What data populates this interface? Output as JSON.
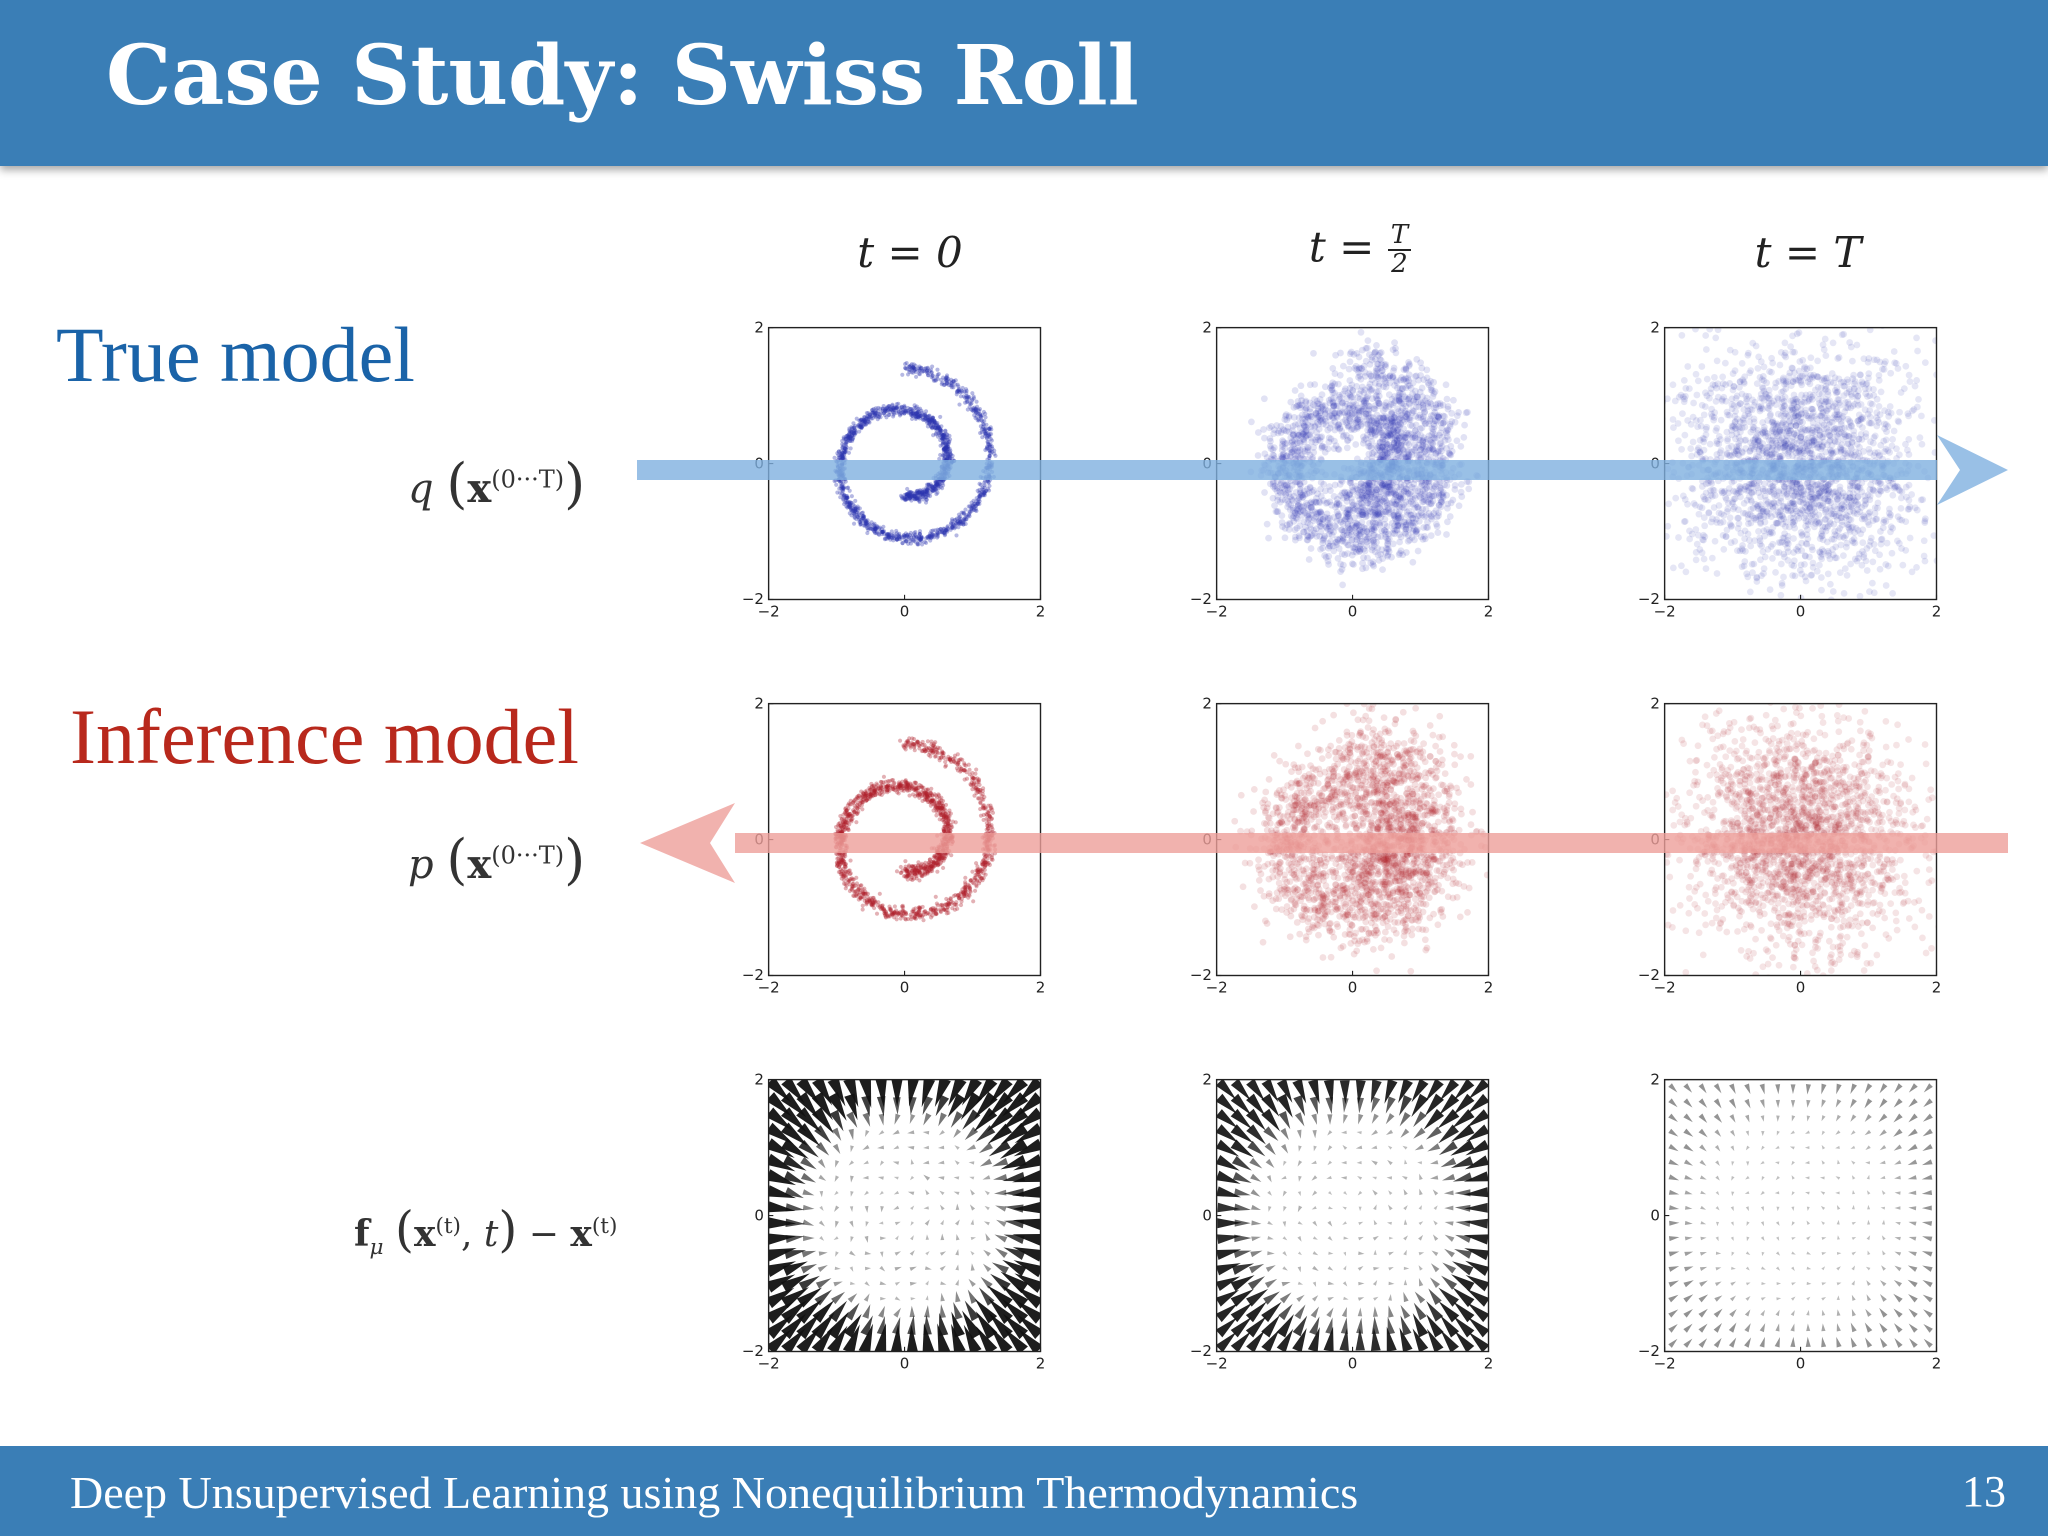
{
  "slide": {
    "title": "Case Study: Swiss Roll",
    "footer_text": "Deep Unsupervised Learning using Nonequilibrium Thermodynamics",
    "page_number": "13"
  },
  "labels": {
    "true_model": "True model",
    "inference_model": "Inference model"
  },
  "row_math": {
    "q": {
      "fn": "q",
      "var": "x",
      "sup": "(0···T)"
    },
    "p": {
      "fn": "p",
      "var": "x",
      "sup": "(0···T)"
    },
    "f": {
      "fn": "f",
      "sub": "μ",
      "var": "x",
      "sup": "(t)",
      "arg": "t",
      "minus": "−"
    }
  },
  "columns": {
    "t0": "t = 0",
    "thalf_lhs": "t =",
    "thalf_num": "T",
    "thalf_den": "2",
    "tT": "t = T"
  },
  "colors": {
    "header": "#3a7eb6",
    "true_model": "#1a63a8",
    "inference_model": "#b8281c",
    "forward_arrow": "#7fb0e0",
    "reverse_arrow": "#ee9f9a",
    "blue_points": "#2a35b0",
    "red_points": "#b0202a"
  },
  "chart_data": [
    {
      "type": "scatter",
      "row": "true",
      "column": "t = 0",
      "series": "swiss roll",
      "spread": 0.04,
      "xlim": [
        -2,
        2
      ],
      "ylim": [
        -2,
        2
      ],
      "xticks": [
        "−2",
        "0",
        "2"
      ],
      "yticks": [
        "−2",
        "0",
        "2"
      ]
    },
    {
      "type": "scatter",
      "row": "true",
      "column": "t = T/2",
      "series": "swiss roll",
      "spread": 0.22,
      "xlim": [
        -2,
        2
      ],
      "ylim": [
        -2,
        2
      ],
      "xticks": [
        "−2",
        "0",
        "2"
      ],
      "yticks": [
        "−2",
        "0",
        "2"
      ]
    },
    {
      "type": "scatter",
      "row": "true",
      "column": "t = T",
      "series": "gaussian",
      "spread": 1.0,
      "xlim": [
        -2,
        2
      ],
      "ylim": [
        -2,
        2
      ],
      "xticks": [
        "−2",
        "0",
        "2"
      ],
      "yticks": [
        "−2",
        "0",
        "2"
      ]
    },
    {
      "type": "scatter",
      "row": "inference",
      "column": "t = 0",
      "series": "swiss roll",
      "spread": 0.05,
      "xlim": [
        -2,
        2
      ],
      "ylim": [
        -2,
        2
      ],
      "xticks": [
        "−2",
        "0",
        "2"
      ],
      "yticks": [
        "−2",
        "0",
        "2"
      ]
    },
    {
      "type": "scatter",
      "row": "inference",
      "column": "t = T/2",
      "series": "swiss roll",
      "spread": 0.3,
      "xlim": [
        -2,
        2
      ],
      "ylim": [
        -2,
        2
      ],
      "xticks": [
        "−2",
        "0",
        "2"
      ],
      "yticks": [
        "−2",
        "0",
        "2"
      ]
    },
    {
      "type": "scatter",
      "row": "inference",
      "column": "t = T",
      "series": "gaussian",
      "spread": 1.0,
      "xlim": [
        -2,
        2
      ],
      "ylim": [
        -2,
        2
      ],
      "xticks": [
        "−2",
        "0",
        "2"
      ],
      "yticks": [
        "−2",
        "0",
        "2"
      ]
    },
    {
      "type": "quiver",
      "row": "drift",
      "column": "t = 0",
      "strength": 1.0,
      "xlim": [
        -2,
        2
      ],
      "ylim": [
        -2,
        2
      ],
      "xticks": [
        "−2",
        "0",
        "2"
      ],
      "yticks": [
        "−2",
        "0",
        "2"
      ]
    },
    {
      "type": "quiver",
      "row": "drift",
      "column": "t = T/2",
      "strength": 0.8,
      "xlim": [
        -2,
        2
      ],
      "ylim": [
        -2,
        2
      ],
      "xticks": [
        "−2",
        "0",
        "2"
      ],
      "yticks": [
        "−2",
        "0",
        "2"
      ]
    },
    {
      "type": "quiver",
      "row": "drift",
      "column": "t = T",
      "strength": 0.25,
      "xlim": [
        -2,
        2
      ],
      "ylim": [
        -2,
        2
      ],
      "xticks": [
        "−2",
        "0",
        "2"
      ],
      "yticks": [
        "−2",
        "0",
        "2"
      ]
    }
  ]
}
